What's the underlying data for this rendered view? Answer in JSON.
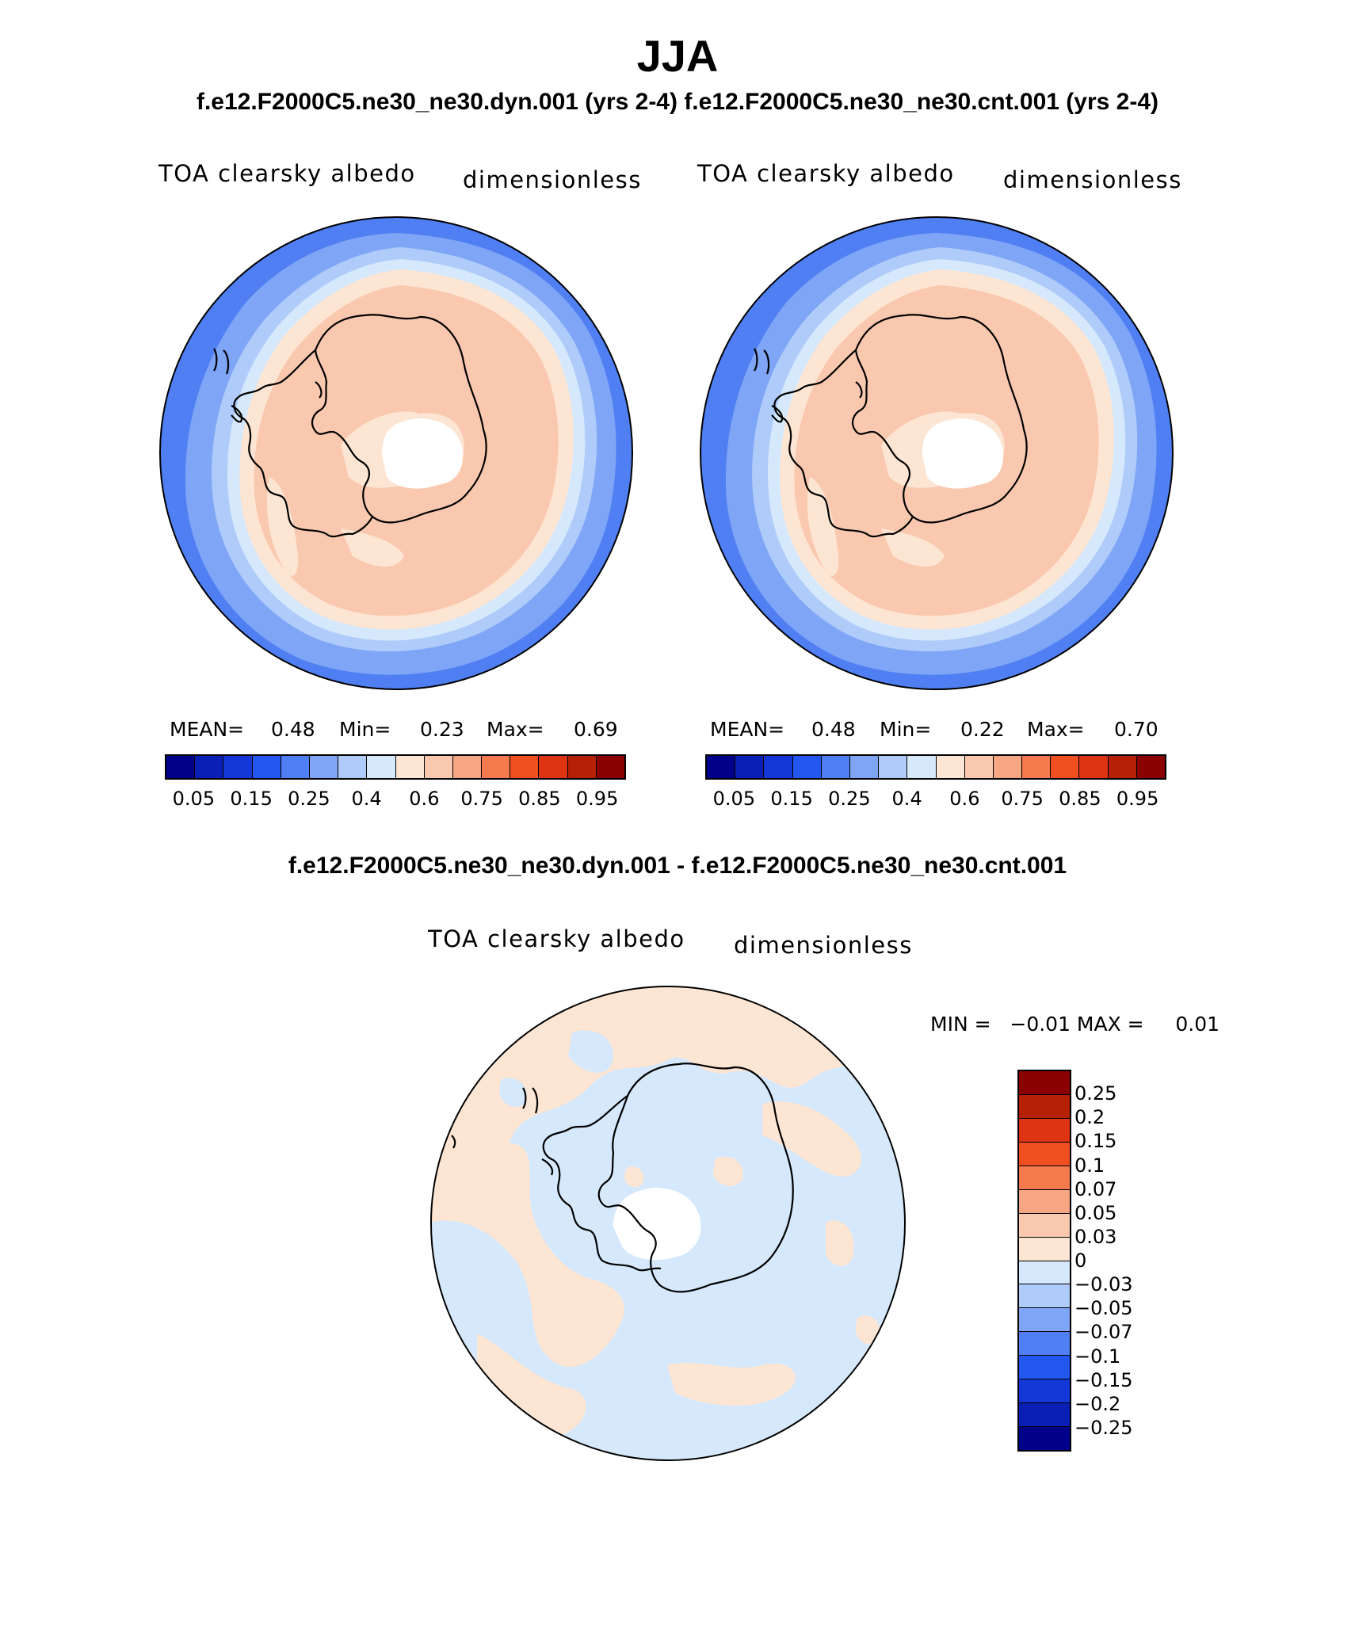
{
  "figure": {
    "season": "JJA",
    "runs_title": "f.e12.F2000C5.ne30_ne30.dyn.001 (yrs 2-4)  f.e12.F2000C5.ne30_ne30.cnt.001 (yrs 2-4)",
    "diff_title": "f.e12.F2000C5.ne30_ne30.dyn.001 - f.e12.F2000C5.ne30_ne30.cnt.001"
  },
  "panels": [
    {
      "variable": "TOA clearsky albedo",
      "units": "dimensionless",
      "mean_label": "MEAN=",
      "mean": "0.48",
      "min_label": "Min=",
      "min": "0.23",
      "max_label": "Max=",
      "max": "0.69"
    },
    {
      "variable": "TOA clearsky albedo",
      "units": "dimensionless",
      "mean_label": "MEAN=",
      "mean": "0.48",
      "min_label": "Min=",
      "min": "0.22",
      "max_label": "Max=",
      "max": "0.70"
    }
  ],
  "diff_panel": {
    "variable": "TOA clearsky albedo",
    "units": "dimensionless",
    "minmax_text": "MIN =   −0.01 MAX =     0.01"
  },
  "colorbar_main": {
    "tick_labels": [
      "0.05",
      "0.15",
      "0.25",
      "0.4",
      "0.6",
      "0.75",
      "0.85",
      "0.95"
    ],
    "colors": [
      "#00008b",
      "#0a1fb5",
      "#1438d8",
      "#2358f0",
      "#4f7ff2",
      "#7fa5f6",
      "#aecbfa",
      "#d6e8fb",
      "#fde5d3",
      "#f9c8ae",
      "#f6a683",
      "#f57b4f",
      "#f0501f",
      "#de3412",
      "#b62106",
      "#8b0000"
    ]
  },
  "colorbar_diff": {
    "tick_labels": [
      "0.25",
      "0.2",
      "0.15",
      "0.1",
      "0.07",
      "0.05",
      "0.03",
      "0",
      "−0.03",
      "−0.05",
      "−0.07",
      "−0.1",
      "−0.15",
      "−0.2",
      "−0.25"
    ],
    "colors": [
      "#8b0000",
      "#b62106",
      "#de3412",
      "#f0501f",
      "#f57b4f",
      "#f6a683",
      "#f9c8ae",
      "#fde5d3",
      "#d6e8fb",
      "#aecbfa",
      "#7fa5f6",
      "#4f7ff2",
      "#2358f0",
      "#1438d8",
      "#0a1fb5",
      "#00008b"
    ]
  }
}
